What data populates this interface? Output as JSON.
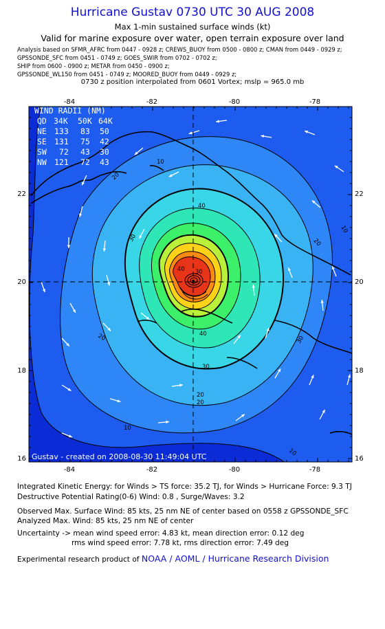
{
  "header": {
    "title": "Hurricane Gustav 0730 UTC 30 AUG 2008",
    "subtitle1": "Max 1-min sustained surface winds (kt)",
    "subtitle2": "Valid for marine exposure over water, open terrain exposure over land",
    "sources": [
      "Analysis based on   SFMR_AFRC from 0447 - 0928 z;  CREWS_BUOY from 0500 - 0800 z;  CMAN from 0449 - 0929 z;",
      "GPSSONDE_SFC from 0451 - 0749 z;  GOES_SWIR from 0702 - 0702 z;",
      "SHIP from 0600 - 0900 z;  METAR from 0450 - 0900 z;",
      "GPSSONDE_WL150 from 0451 - 0749 z;  MOORED_BUOY from 0449 - 0929 z;"
    ],
    "position_note": "0730 z position interpolated from 0601 Vortex; mslp = 965.0 mb"
  },
  "map": {
    "x_ticks": [
      "-84",
      "-82",
      "-80",
      "-78"
    ],
    "y_ticks": [
      "22",
      "20",
      "18",
      "16"
    ],
    "contour_labels": [
      "10",
      "20",
      "30",
      "40",
      "10",
      "20",
      "30",
      "40",
      "20",
      "30",
      "20",
      "10",
      "10",
      "20",
      "30",
      "40",
      "20",
      "10"
    ],
    "wind_radii": {
      "title": "WIND RADII (NM)",
      "header": [
        "QD",
        "34K",
        "50K",
        "64K"
      ],
      "rows": [
        [
          "NE",
          "133",
          "83",
          "50"
        ],
        [
          "SE",
          "131",
          "75",
          "42"
        ],
        [
          "SW",
          "72",
          "43",
          "30"
        ],
        [
          "NW",
          "121",
          "72",
          "43"
        ]
      ]
    },
    "footer_stamp": "Gustav - created on 2008-08-30 11:49:04 UTC",
    "colors": {
      "ocean_dark": "#0a2bd6",
      "c10": "#1e5cf0",
      "c20": "#2f86f6",
      "c30": "#39b3f4",
      "c40": "#38d6e6",
      "c50": "#2fe7b6",
      "c60": "#3cf06a",
      "c70": "#b8f03a",
      "c80": "#ffd21a",
      "c85": "#ff8a12",
      "c90": "#e8351a"
    }
  },
  "footer": {
    "ike": "Integrated Kinetic Energy:  for Winds > TS force: 35.2 TJ,  for Winds > Hurricane Force: 9.3 TJ",
    "dpr": "Destructive Potential Rating(0-6)   Wind: 0.8 , Surge/Waves: 3.2",
    "obs_max": "Observed Max. Surface Wind: 85 kts, 25 nm NE of center based on 0558 z GPSSONDE_SFC",
    "ana_max": "Analyzed Max. Wind: 85 kts, 25 nm NE of center",
    "uncert1": "Uncertainty -> mean wind speed error: 4.83 kt,   mean direction error: 0.12 deg",
    "uncert2": "rms wind speed error: 7.78 kt,   rms direction error: 7.49 deg",
    "credit_prefix": "Experimental research product of",
    "credit_org": "NOAA / AOML / Hurricane Research Division"
  }
}
